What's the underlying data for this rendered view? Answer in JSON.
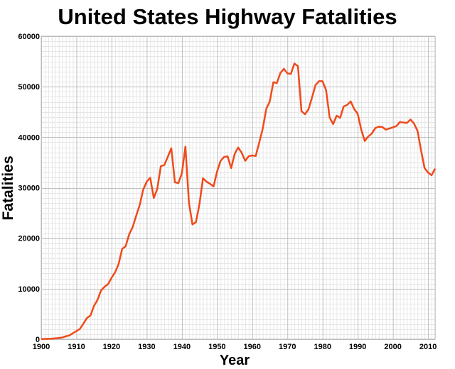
{
  "chart_data": {
    "type": "line",
    "title": "United States Highway Fatalities",
    "xlabel": "Year",
    "ylabel": "Fatalities",
    "xlim": [
      1900,
      2012
    ],
    "ylim": [
      0,
      60000
    ],
    "grid": true,
    "x_ticks": [
      1900,
      1910,
      1920,
      1930,
      1940,
      1950,
      1960,
      1970,
      1980,
      1990,
      2000,
      2010
    ],
    "y_ticks": [
      0,
      10000,
      20000,
      30000,
      40000,
      50000,
      60000
    ],
    "line_color": "#f04a1a",
    "series": [
      {
        "x": [
          1900,
          1901,
          1902,
          1903,
          1904,
          1905,
          1906,
          1907,
          1908,
          1909,
          1910,
          1911,
          1912,
          1913,
          1914,
          1915,
          1916,
          1917,
          1918,
          1919,
          1920,
          1921,
          1922,
          1923,
          1924,
          1925,
          1926,
          1927,
          1928,
          1929,
          1930,
          1931,
          1932,
          1933,
          1934,
          1935,
          1936,
          1937,
          1938,
          1939,
          1940,
          1941,
          1942,
          1943,
          1944,
          1945,
          1946,
          1947,
          1948,
          1949,
          1950,
          1951,
          1952,
          1953,
          1954,
          1955,
          1956,
          1957,
          1958,
          1959,
          1960,
          1961,
          1962,
          1963,
          1964,
          1965,
          1966,
          1967,
          1968,
          1969,
          1970,
          1971,
          1972,
          1973,
          1974,
          1975,
          1976,
          1977,
          1978,
          1979,
          1980,
          1981,
          1982,
          1983,
          1984,
          1985,
          1986,
          1987,
          1988,
          1989,
          1990,
          1991,
          1992,
          1993,
          1994,
          1995,
          1996,
          1997,
          1998,
          1999,
          2000,
          2001,
          2002,
          2003,
          2004,
          2005,
          2006,
          2007,
          2008,
          2009,
          2010,
          2011,
          2012
        ],
        "y": [
          36,
          54,
          79,
          117,
          172,
          252,
          338,
          581,
          751,
          1174,
          1599,
          2043,
          3100,
          4200,
          4700,
          6600,
          7766,
          9630,
          10390,
          10896,
          12155,
          13253,
          14859,
          17870,
          18400,
          20771,
          22194,
          24470,
          26557,
          29592,
          31204,
          31963,
          27979,
          29746,
          34240,
          34494,
          36126,
          37819,
          31083,
          30895,
          32914,
          38142,
          27007,
          22727,
          23165,
          26785,
          31874,
          31193,
          30775,
          30246,
          33186,
          35309,
          36088,
          36190,
          33890,
          36688,
          37965,
          36932,
          35331,
          36223,
          36399,
          36285,
          38980,
          41723,
          45645,
          47089,
          50894,
          50724,
          52725,
          53543,
          52627,
          52542,
          54589,
          54052,
          45196,
          44525,
          45523,
          47878,
          50331,
          51093,
          51091,
          49301,
          43945,
          42589,
          44257,
          43825,
          46087,
          46390,
          47087,
          45582,
          44599,
          41508,
          39250,
          40150,
          40716,
          41817,
          42065,
          42013,
          41501,
          41717,
          41945,
          42196,
          43005,
          42884,
          42836,
          43510,
          42708,
          41259,
          37423,
          33883,
          32999,
          32479,
          33782
        ]
      }
    ]
  }
}
